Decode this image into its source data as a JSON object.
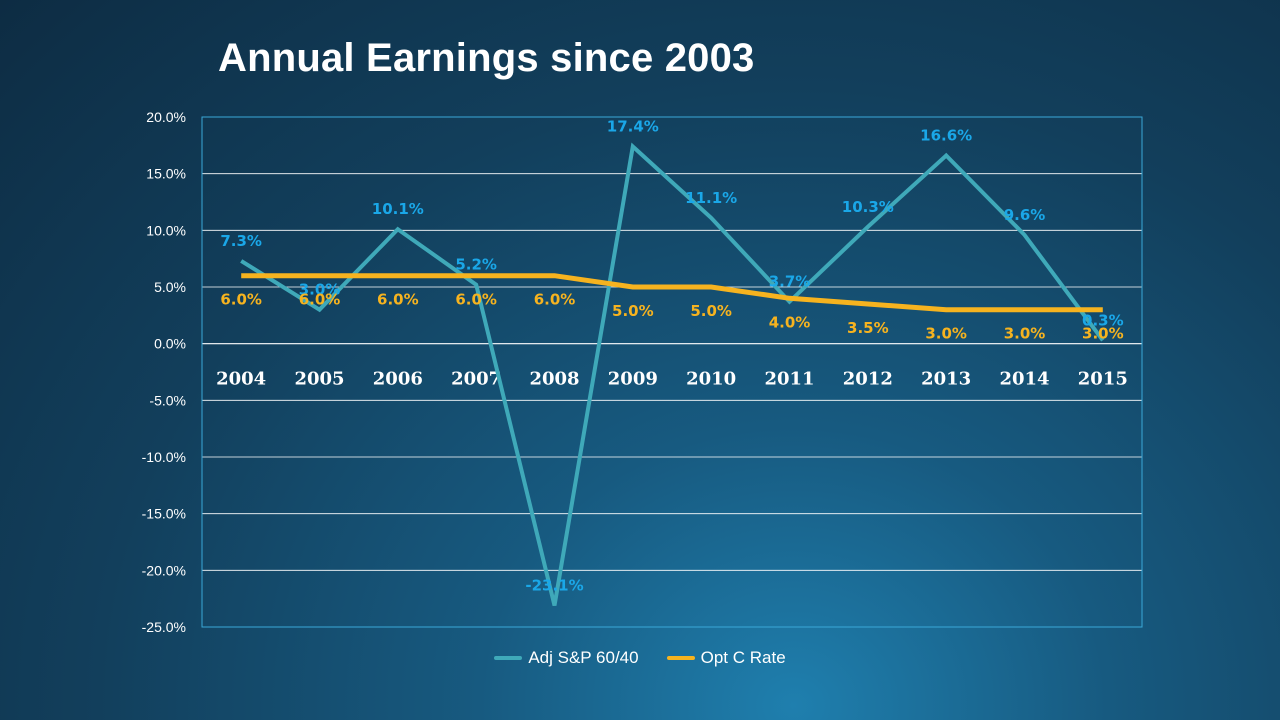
{
  "slide": {
    "title": "Annual Earnings since 2003"
  },
  "colors": {
    "background": "#123f5c",
    "sp_line": "#3fa9b9",
    "sp_label": "#1aa7e8",
    "opt_line": "#f6b31f",
    "opt_label": "#f6b31f",
    "grid": "#ffffff",
    "plot_border": "#3aa8d8"
  },
  "chart_data": {
    "type": "line",
    "title": "Annual Earnings since 2003",
    "categories": [
      "2004",
      "2005",
      "2006",
      "2007",
      "2008",
      "2009",
      "2010",
      "2011",
      "2012",
      "2013",
      "2014",
      "2015"
    ],
    "series": [
      {
        "name": "Adj S&P 60/40",
        "values": [
          7.3,
          3.0,
          10.1,
          5.2,
          -23.1,
          17.4,
          11.1,
          3.7,
          10.3,
          16.6,
          9.6,
          0.3
        ],
        "labels": [
          "7.3%",
          "3.0%",
          "10.1%",
          "5.2%",
          "-23.1%",
          "17.4%",
          "11.1%",
          "3.7%",
          "10.3%",
          "16.6%",
          "9.6%",
          "0.3%"
        ]
      },
      {
        "name": "Opt C Rate",
        "values": [
          6.0,
          6.0,
          6.0,
          6.0,
          6.0,
          5.0,
          5.0,
          4.0,
          3.5,
          3.0,
          3.0,
          3.0
        ],
        "labels": [
          "6.0%",
          "6.0%",
          "6.0%",
          "6.0%",
          "6.0%",
          "5.0%",
          "5.0%",
          "4.0%",
          "3.5%",
          "3.0%",
          "3.0%",
          "3.0%"
        ]
      }
    ],
    "ylim": [
      -25,
      20
    ],
    "y_ticks": [
      "20.0%",
      "15.0%",
      "10.0%",
      "5.0%",
      "0.0%",
      "-5.0%",
      "-10.0%",
      "-15.0%",
      "-20.0%",
      "-25.0%"
    ],
    "grid": true,
    "legend_position": "bottom"
  },
  "legend": {
    "items": [
      "Adj S&P 60/40",
      "Opt C Rate"
    ]
  }
}
